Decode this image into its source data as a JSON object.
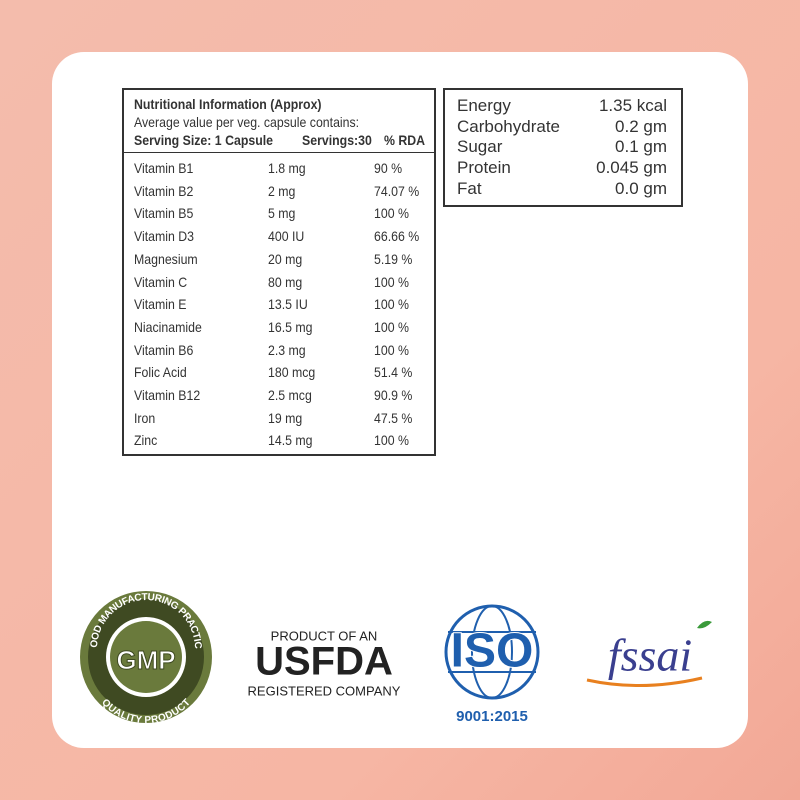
{
  "nutrition": {
    "title": "Nutritional Information (Approx)",
    "subtitle": "Average value per veg. capsule contains:",
    "serving_size": "Serving Size: 1 Capsule",
    "servings": "Servings:30",
    "rda_header": "% RDA",
    "rows": [
      [
        "Vitamin B1",
        "1.8 mg",
        "90 %"
      ],
      [
        "Vitamin B2",
        "2 mg",
        "74.07 %"
      ],
      [
        "Vitamin B5",
        "5 mg",
        "100 %"
      ],
      [
        "Vitamin D3",
        "400 IU",
        "66.66 %"
      ],
      [
        "Magnesium",
        "20 mg",
        "5.19 %"
      ],
      [
        "Vitamin C",
        "80 mg",
        "100 %"
      ],
      [
        "Vitamin E",
        "13.5 IU",
        "100 %"
      ],
      [
        "Niacinamide",
        "16.5 mg",
        "100 %"
      ],
      [
        "Vitamin B6",
        "2.3 mg",
        "100 %"
      ],
      [
        "Folic Acid",
        "180 mcg",
        "51.4 %"
      ],
      [
        "Vitamin B12",
        "2.5 mcg",
        "90.9 %"
      ],
      [
        "Iron",
        "19 mg",
        "47.5 %"
      ],
      [
        "Zinc",
        "14.5 mg",
        "100 %"
      ]
    ]
  },
  "energy": {
    "rows": [
      [
        "Energy",
        "1.35 kcal"
      ],
      [
        "Carbohydrate",
        "0.2 gm"
      ],
      [
        "Sugar",
        "0.1 gm"
      ],
      [
        "Protein",
        "0.045 gm"
      ],
      [
        "Fat",
        "0.0 gm"
      ]
    ]
  },
  "badges": {
    "gmp": {
      "top": "GOOD MANUFACTURING PRACTICE",
      "center": "GMP",
      "bottom": "QUALITY PRODUCT"
    },
    "usfda": {
      "top": "PRODUCT OF AN",
      "main": "USFDA",
      "bottom": "REGISTERED COMPANY"
    },
    "iso": {
      "main": "ISO",
      "standard": "9001:2015"
    },
    "fssai": {
      "main": "fssai"
    }
  }
}
